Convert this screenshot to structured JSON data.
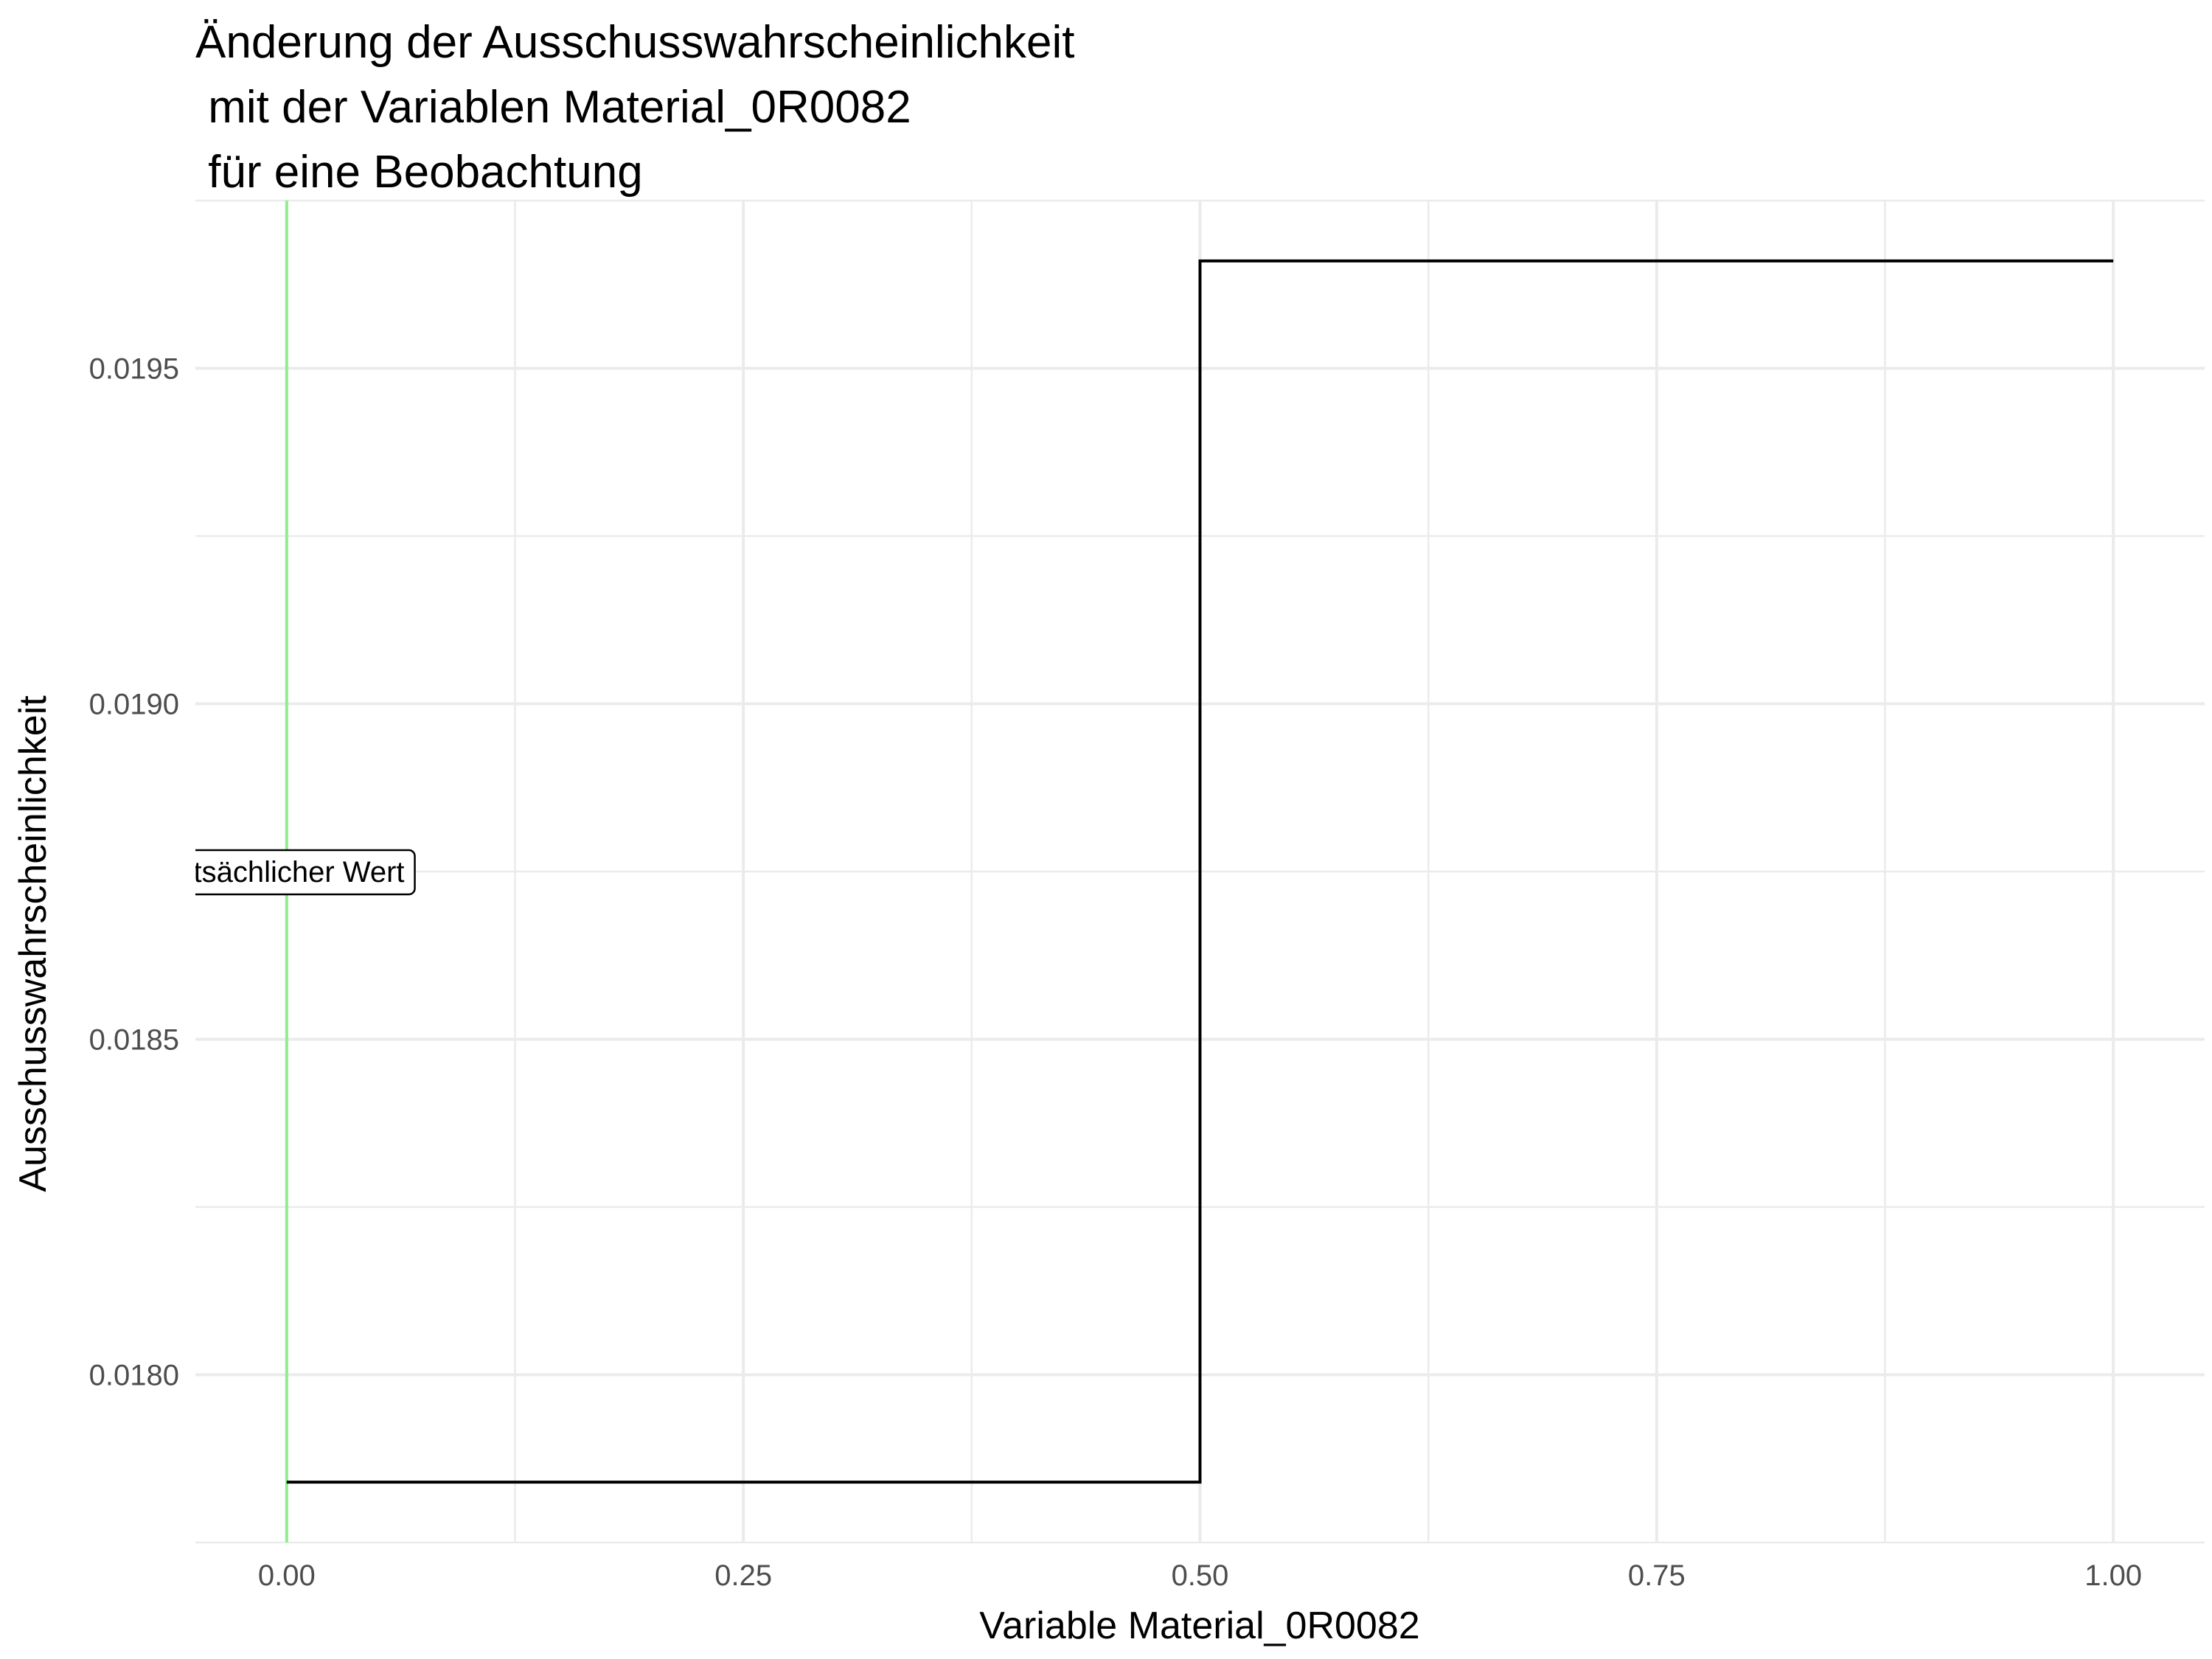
{
  "chart_data": {
    "type": "line",
    "title_lines": [
      "Änderung der Ausschusswahrscheinlichkeit",
      " mit der Variablen Material_0R0082",
      " für eine Beobachtung"
    ],
    "xlabel": "Variable Material_0R0082",
    "ylabel": "Ausschusswahrscheinlichkeit",
    "xlim": [
      -0.05,
      1.05
    ],
    "ylim": [
      0.01775,
      0.01975
    ],
    "x_ticks": [
      0.0,
      0.25,
      0.5,
      0.75,
      1.0
    ],
    "x_tick_labels": [
      "0.00",
      "0.25",
      "0.50",
      "0.75",
      "1.00"
    ],
    "y_ticks": [
      0.018,
      0.0185,
      0.019,
      0.0195
    ],
    "y_tick_labels": [
      "0.0180",
      "0.0185",
      "0.0190",
      "0.0195"
    ],
    "grid": true,
    "series": [
      {
        "step": "post",
        "color": "#000000",
        "x": [
          0.0,
          0.5,
          1.0
        ],
        "y": [
          0.01784,
          0.01966,
          0.01966
        ]
      }
    ],
    "reference_line": {
      "x": 0.0,
      "color": "#90ee90"
    },
    "annotation": {
      "text": "tatsächlicher Wert",
      "x": 0.0,
      "y": 0.01875
    }
  }
}
